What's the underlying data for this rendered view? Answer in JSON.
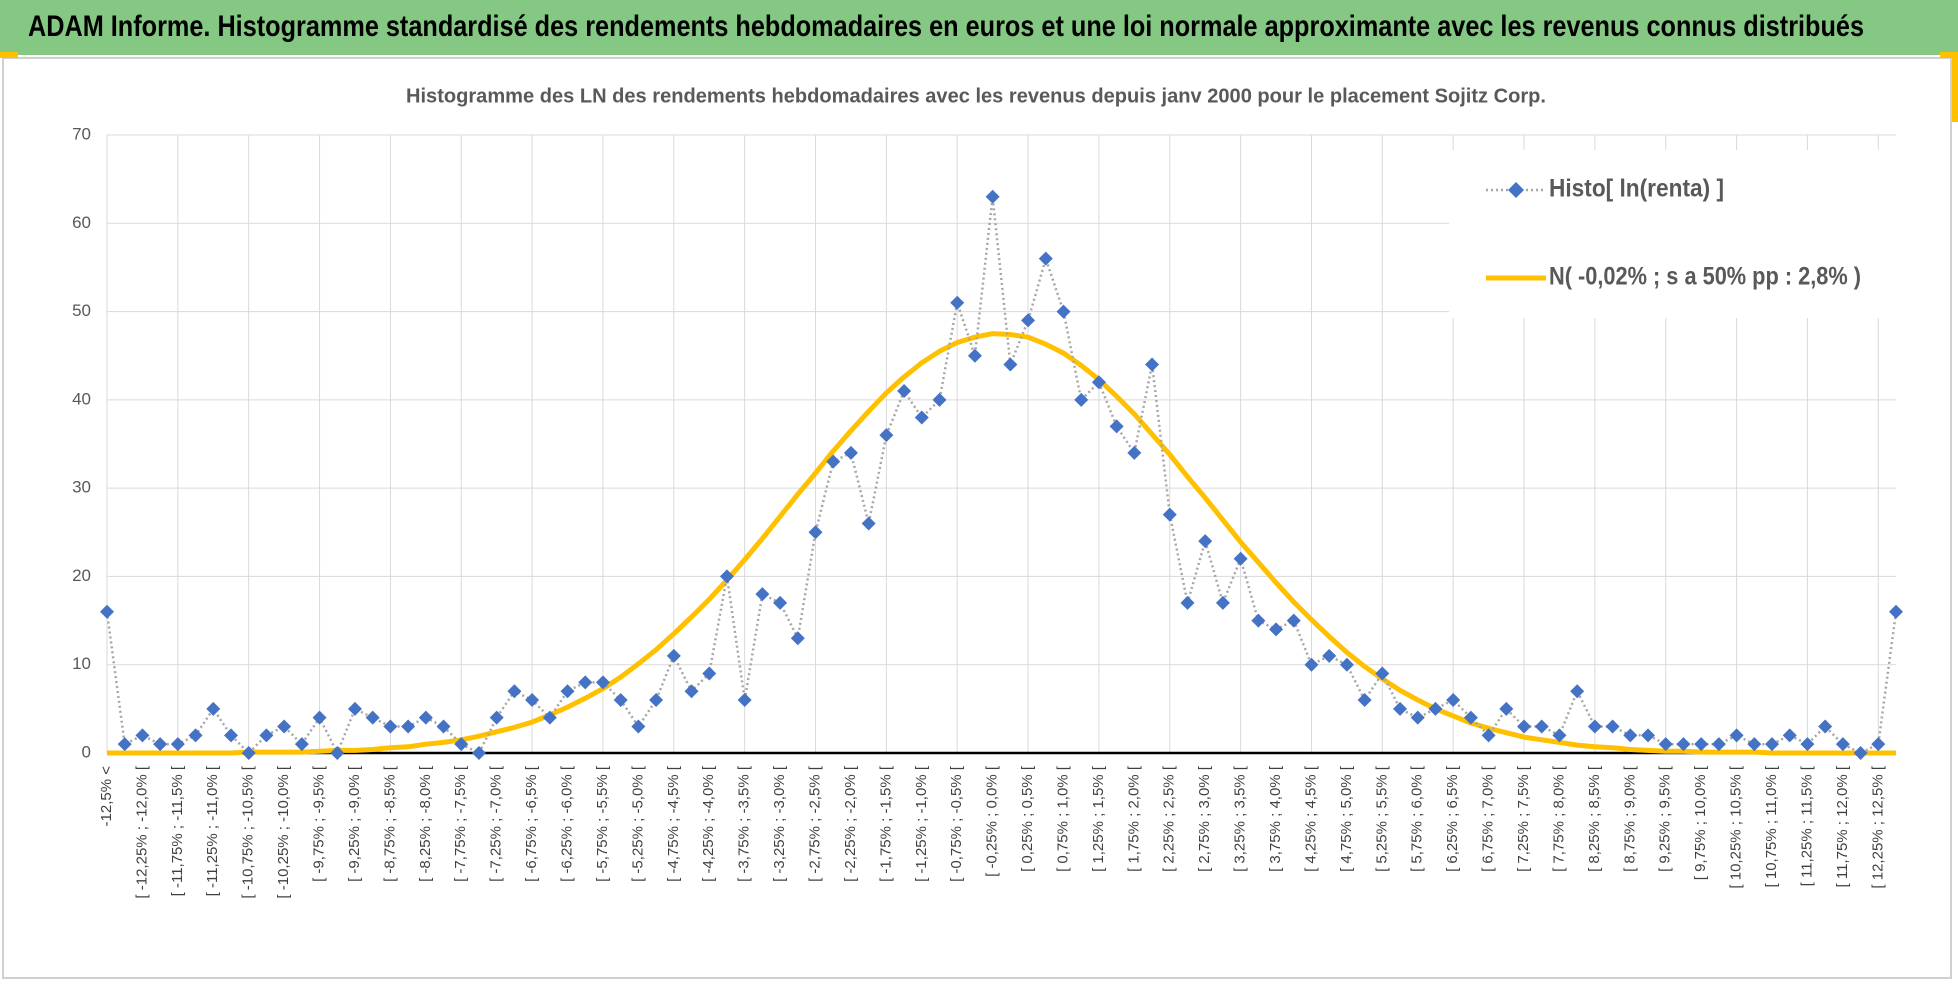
{
  "header": {
    "title": "ADAM Informe. Histogramme standardisé des rendements hebdomadaires en euros et une loi normale approximante avec les revenus connus distribués"
  },
  "chart_data": {
    "type": "line",
    "title": "Histogramme  des LN des rendements  hebdomadaires avec les revenus depuis janv 2000 pour le placement Sojitz Corp.",
    "categories": [
      "-12,5% <",
      null,
      "[ -12,25% ; -12,0% [",
      null,
      "[ -11,75% ; -11,5% [",
      null,
      "[ -11,25% ; -11,0% [",
      null,
      "[ -10,75% ; -10,5% [",
      null,
      "[ -10,25% ; -10,0% [",
      null,
      "[ -9,75% ; -9,5% [",
      null,
      "[ -9,25% ; -9,0% [",
      null,
      "[ -8,75% ; -8,5% [",
      null,
      "[ -8,25% ; -8,0% [",
      null,
      "[ -7,75% ; -7,5% [",
      null,
      "[ -7,25% ; -7,0% [",
      null,
      "[ -6,75% ; -6,5% [",
      null,
      "[ -6,25% ; -6,0% [",
      null,
      "[ -5,75% ; -5,5% [",
      null,
      "[ -5,25% ; -5,0% [",
      null,
      "[ -4,75% ; -4,5% [",
      null,
      "[ -4,25% ; -4,0% [",
      null,
      "[ -3,75% ; -3,5% [",
      null,
      "[ -3,25% ; -3,0% [",
      null,
      "[ -2,75% ; -2,5% [",
      null,
      "[ -2,25% ; -2,0% [",
      null,
      "[ -1,75% ; -1,5% [",
      null,
      "[ -1,25% ; -1,0% [",
      null,
      "[ -0,75% ; -0,5% [",
      null,
      "[ -0,25% ; 0,0% [",
      null,
      "[ 0,25% ; 0,5% [",
      null,
      "[ 0,75% ; 1,0% [",
      null,
      "[ 1,25% ; 1,5% [",
      null,
      "[ 1,75% ; 2,0% [",
      null,
      "[ 2,25% ; 2,5% [",
      null,
      "[ 2,75% ; 3,0% [",
      null,
      "[ 3,25% ; 3,5% [",
      null,
      "[ 3,75% ; 4,0% [",
      null,
      "[ 4,25% ; 4,5% [",
      null,
      "[ 4,75% ; 5,0% [",
      null,
      "[ 5,25% ; 5,5% [",
      null,
      "[ 5,75% ; 6,0% [",
      null,
      "[ 6,25% ; 6,5% [",
      null,
      "[ 6,75% ; 7,0% [",
      null,
      "[ 7,25% ; 7,5% [",
      null,
      "[ 7,75% ; 8,0% [",
      null,
      "[ 8,25% ; 8,5% [",
      null,
      "[ 8,75% ; 9,0% [",
      null,
      "[ 9,25% ; 9,5% [",
      null,
      "[ 9,75% ; 10,0% [",
      null,
      "[ 10,25% ; 10,5% [",
      null,
      "[ 10,75% ; 11,0% [",
      null,
      "[ 11,25% ; 11,5% [",
      null,
      "[ 11,75% ; 12,0% [",
      null,
      "[ 12,25% ; 12,5% [",
      null
    ],
    "series": [
      {
        "name": "Histo[ ln(renta) ]",
        "color": "#4472c4",
        "line_color": "#a6a6a6",
        "marker": "diamond",
        "line": "dotted",
        "values": [
          16,
          1,
          2,
          1,
          1,
          2,
          5,
          2,
          0,
          2,
          3,
          1,
          4,
          0,
          5,
          4,
          3,
          3,
          4,
          3,
          1,
          0,
          4,
          7,
          6,
          4,
          7,
          8,
          8,
          6,
          3,
          6,
          11,
          7,
          9,
          20,
          6,
          18,
          17,
          13,
          25,
          33,
          34,
          26,
          36,
          41,
          38,
          40,
          51,
          45,
          63,
          44,
          49,
          56,
          50,
          40,
          42,
          37,
          34,
          44,
          27,
          17,
          24,
          17,
          22,
          15,
          14,
          15,
          10,
          11,
          10,
          6,
          9,
          5,
          4,
          5,
          6,
          4,
          2,
          5,
          3,
          3,
          2,
          7,
          3,
          3,
          2,
          2,
          1,
          1,
          1,
          1,
          2,
          1,
          1,
          2,
          1,
          3,
          1,
          0,
          1,
          16
        ]
      },
      {
        "name": "N( -0,02% ; s a 50% pp : 2,8% )",
        "color": "#ffc000",
        "line": "solid",
        "values": [
          0,
          0,
          0,
          0,
          0,
          0,
          0,
          0,
          0.1,
          0.1,
          0.1,
          0.1,
          0.2,
          0.3,
          0.3,
          0.4,
          0.6,
          0.7,
          1.0,
          1.2,
          1.5,
          1.9,
          2.4,
          2.9,
          3.5,
          4.3,
          5.2,
          6.2,
          7.3,
          8.6,
          10.1,
          11.7,
          13.5,
          15.4,
          17.4,
          19.6,
          21.9,
          24.3,
          26.8,
          29.3,
          31.7,
          34.2,
          36.5,
          38.7,
          40.8,
          42.6,
          44.2,
          45.5,
          46.5,
          47.1,
          47.5,
          47.4,
          47.1,
          46.3,
          45.3,
          43.9,
          42.3,
          40.4,
          38.4,
          36.1,
          33.8,
          31.3,
          28.9,
          26.4,
          23.9,
          21.6,
          19.3,
          17.1,
          15.1,
          13.2,
          11.4,
          9.8,
          8.4,
          7.1,
          6.0,
          5.0,
          4.2,
          3.4,
          2.8,
          2.3,
          1.8,
          1.5,
          1.2,
          0.9,
          0.7,
          0.6,
          0.4,
          0.3,
          0.2,
          0.2,
          0.1,
          0.1,
          0.1,
          0.1,
          0,
          0,
          0,
          0,
          0,
          0,
          0,
          0
        ]
      }
    ],
    "ylim": [
      0,
      70
    ],
    "yticks": [
      0,
      10,
      20,
      30,
      40,
      50,
      60,
      70
    ],
    "grid": true,
    "legend": "top-right"
  }
}
